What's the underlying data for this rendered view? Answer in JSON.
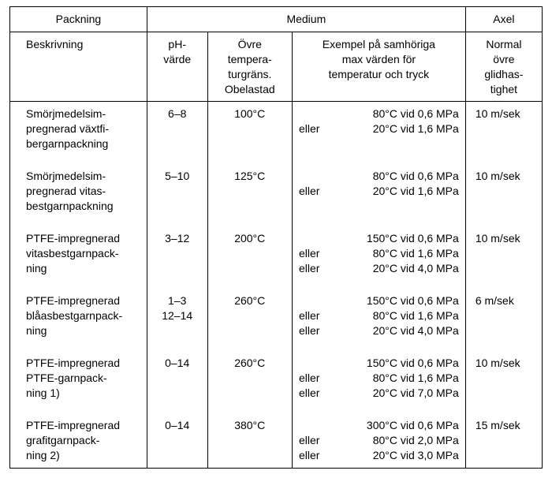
{
  "header": {
    "packning": "Packning",
    "medium": "Medium",
    "axel": "Axel",
    "beskrivning": "Beskrivning",
    "ph": "pH-\nvärde",
    "ovre_temp": "Övre\ntempera-\nturgräns.\nObelastad",
    "exempel": "Exempel på samhöriga\nmax värden för\ntemperatur och tryck",
    "normal": "Normal\növre\nglidhas-\ntighet"
  },
  "rows": [
    {
      "desc": "Smörjmedelsim-\npregnerad växtfi-\nbergarnpackning",
      "ph": "6–8",
      "temp": "100°C",
      "examples": [
        {
          "lead": "",
          "val": "80°C vid 0,6 MPa"
        },
        {
          "lead": "eller",
          "val": "20°C vid 1,6 MPa"
        }
      ],
      "axel": "10 m/sek"
    },
    {
      "desc": "Smörjmedelsim-\npregnerad vitas-\nbestgarnpackning",
      "ph": "5–10",
      "temp": "125°C",
      "examples": [
        {
          "lead": "",
          "val": "80°C vid 0,6 MPa"
        },
        {
          "lead": "eller",
          "val": "20°C vid 1,6 MPa"
        }
      ],
      "axel": "10 m/sek"
    },
    {
      "desc": "PTFE-impregnerad\nvitasbestgarnpack-\nning",
      "ph": "3–12",
      "temp": "200°C",
      "examples": [
        {
          "lead": "",
          "val": "150°C vid 0,6 MPa"
        },
        {
          "lead": "eller",
          "val": "80°C vid 1,6 MPa"
        },
        {
          "lead": "eller",
          "val": "20°C vid 4,0 MPa"
        }
      ],
      "axel": "10 m/sek"
    },
    {
      "desc": "PTFE-impregnerad\nblåasbestgarnpack-\nning",
      "ph": "1–3\n12–14",
      "temp": "260°C",
      "examples": [
        {
          "lead": "",
          "val": "150°C vid 0,6 MPa"
        },
        {
          "lead": "eller",
          "val": "80°C vid 1,6 MPa"
        },
        {
          "lead": "eller",
          "val": "20°C vid 4,0 MPa"
        }
      ],
      "axel": "6 m/sek"
    },
    {
      "desc": "PTFE-impregnerad\nPTFE-garnpack-\nning 1)",
      "ph": "0–14",
      "temp": "260°C",
      "examples": [
        {
          "lead": "",
          "val": "150°C vid 0,6 MPa"
        },
        {
          "lead": "eller",
          "val": "80°C vid 1,6 MPa"
        },
        {
          "lead": "eller",
          "val": "20°C vid 7,0 MPa"
        }
      ],
      "axel": "10 m/sek"
    },
    {
      "desc": "PTFE-impregnerad\ngrafitgarnpack-\nning 2)",
      "ph": "0–14",
      "temp": "380°C",
      "examples": [
        {
          "lead": "",
          "val": "300°C vid 0,6 MPa"
        },
        {
          "lead": "eller",
          "val": "80°C vid 2,0 MPa"
        },
        {
          "lead": "eller",
          "val": "20°C vid 3,0 MPa"
        }
      ],
      "axel": "15 m/sek"
    }
  ]
}
